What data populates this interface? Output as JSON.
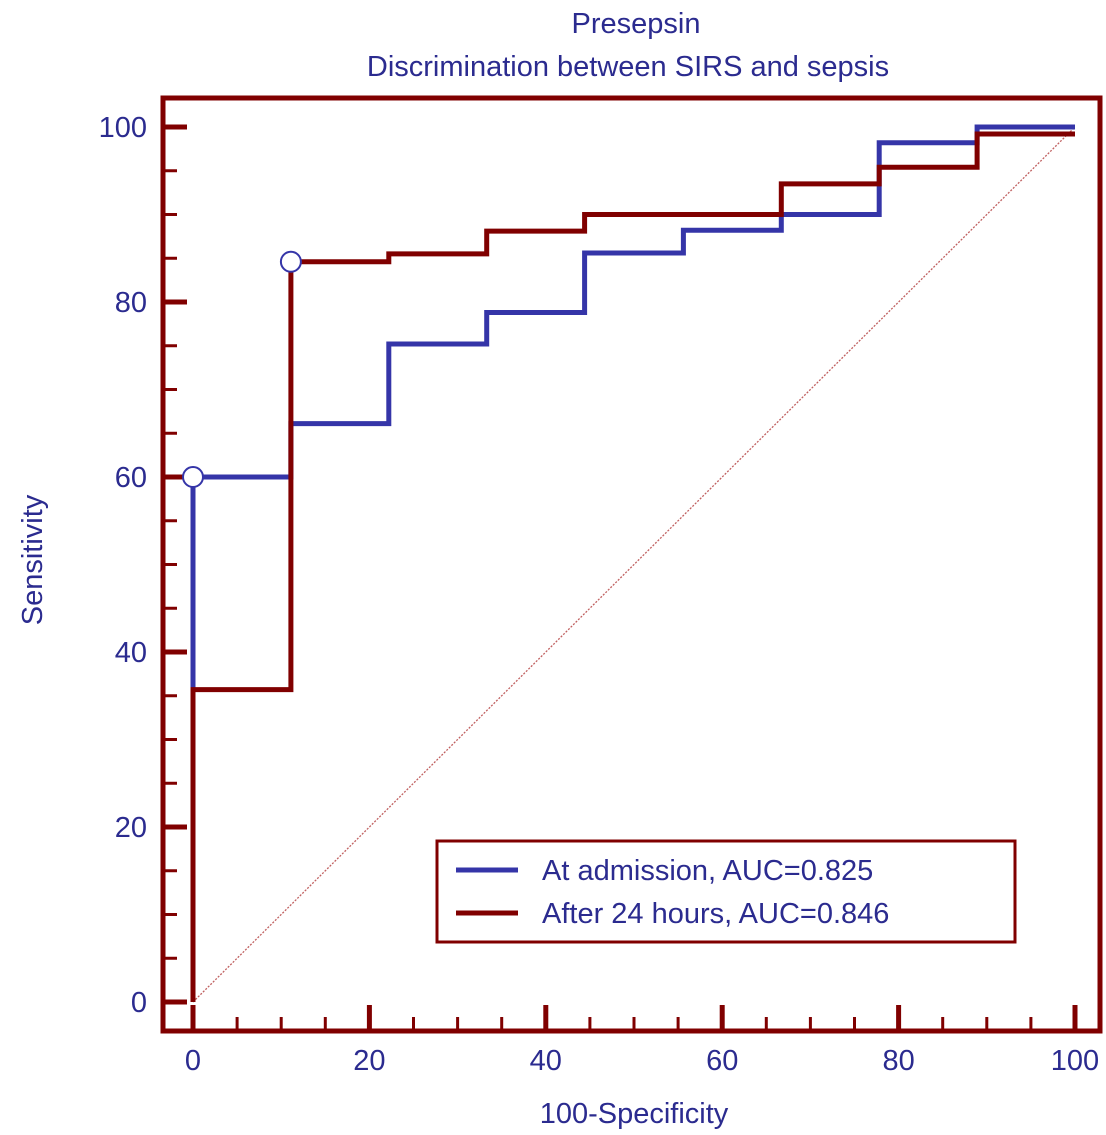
{
  "chart_data": {
    "type": "line",
    "title": "Presepsin",
    "subtitle": "Discrimination between SIRS and sepsis",
    "xlabel": "100-Specificity",
    "ylabel": "Sensitivity",
    "xlim": [
      0,
      100
    ],
    "ylim": [
      0,
      100
    ],
    "xticks": [
      0,
      20,
      40,
      60,
      80,
      100
    ],
    "yticks": [
      0,
      20,
      40,
      60,
      80,
      100
    ],
    "grid": false,
    "legend_position": "bottom-right",
    "series": [
      {
        "name": "At admission, AUC=0.825",
        "color": "#3535a8",
        "step": true,
        "x": [
          0,
          0,
          0,
          11.1,
          11.1,
          22.2,
          22.2,
          33.3,
          33.3,
          44.4,
          44.4,
          55.6,
          55.6,
          66.7,
          66.7,
          77.8,
          77.8,
          88.9,
          88.9,
          100
        ],
        "y": [
          0,
          35.7,
          60,
          60,
          66.1,
          66.1,
          75.2,
          75.2,
          78.8,
          78.8,
          85.6,
          85.6,
          88.2,
          88.2,
          90,
          90,
          98.2,
          98.2,
          100,
          100
        ]
      },
      {
        "name": "After 24 hours, AUC=0.846",
        "color": "#800000",
        "step": true,
        "x": [
          0,
          0,
          11.1,
          11.1,
          22.2,
          22.2,
          33.3,
          33.3,
          44.4,
          44.4,
          66.7,
          66.7,
          77.8,
          77.8,
          88.9,
          88.9,
          100
        ],
        "y": [
          0,
          35.7,
          35.7,
          84.6,
          84.6,
          85.5,
          85.5,
          88.1,
          88.1,
          90,
          90,
          93.5,
          93.5,
          95.4,
          95.4,
          99.2,
          99.2
        ]
      }
    ],
    "optimal_points": [
      {
        "series": "At admission, AUC=0.825",
        "x": 0,
        "y": 60
      },
      {
        "series": "After 24 hours, AUC=0.846",
        "x": 11.1,
        "y": 84.6
      }
    ],
    "reference_line": {
      "x": [
        0,
        100
      ],
      "y": [
        0,
        100
      ],
      "color": "#c06060"
    },
    "frame_color": "#800000",
    "tick_color": "#800000"
  }
}
